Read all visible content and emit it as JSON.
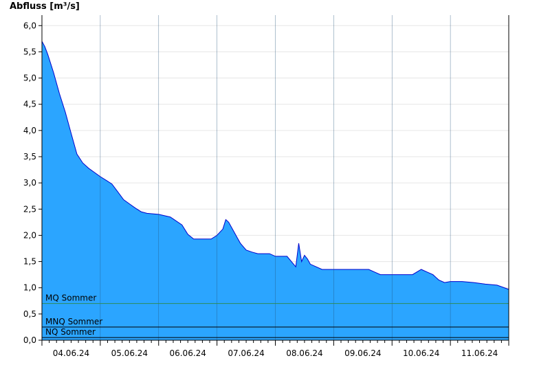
{
  "chart_data": {
    "type": "area",
    "ylabel": "Abfluss [m³/s]",
    "xlabel": "",
    "ylim": [
      0,
      6.2
    ],
    "xlim": [
      0,
      8
    ],
    "grid": true,
    "y_ticks": [
      0,
      0.5,
      1,
      1.5,
      2,
      2.5,
      3,
      3.5,
      4,
      4.5,
      5,
      5.5,
      6
    ],
    "y_tick_labels": [
      "0,0",
      "0,5",
      "1,0",
      "1,5",
      "2,0",
      "2,5",
      "3,0",
      "3,5",
      "4,0",
      "4,5",
      "5,0",
      "5,5",
      "6,0"
    ],
    "x_tick_labels": [
      "04.06.24",
      "05.06.24",
      "06.06.24",
      "07.06.24",
      "08.06.24",
      "09.06.24",
      "10.06.24",
      "11.06.24"
    ],
    "fill_color": "#2ba5ff",
    "line_color": "#0000cc",
    "reference_lines": [
      {
        "label": "MQ Sommer",
        "value": 0.7,
        "color": "#2e8b57"
      },
      {
        "label": "MNQ Sommer",
        "value": 0.25,
        "color": "#000000"
      },
      {
        "label": "NQ Sommer",
        "value": 0.05,
        "color": "#000000"
      }
    ],
    "series": [
      {
        "x": [
          0,
          0.05,
          0.1,
          0.2,
          0.3,
          0.4,
          0.5,
          0.6,
          0.7,
          0.8,
          0.9,
          1.0,
          1.1,
          1.2,
          1.3,
          1.4,
          1.5,
          1.6,
          1.7,
          1.8,
          2.0,
          2.2,
          2.4,
          2.5,
          2.6,
          2.7,
          2.8,
          2.9,
          3.0,
          3.1,
          3.15,
          3.2,
          3.3,
          3.35,
          3.4,
          3.5,
          3.6,
          3.7,
          3.8,
          3.9,
          4.0,
          4.2,
          4.35,
          4.4,
          4.45,
          4.5,
          4.55,
          4.6,
          4.7,
          4.8,
          4.9,
          5.0,
          5.2,
          5.4,
          5.6,
          5.7,
          5.8,
          6.0,
          6.2,
          6.35,
          6.5,
          6.6,
          6.7,
          6.8,
          6.9,
          7.0,
          7.2,
          7.4,
          7.6,
          7.8,
          8.0
        ],
        "values": [
          5.7,
          5.6,
          5.45,
          5.1,
          4.7,
          4.35,
          3.95,
          3.55,
          3.38,
          3.28,
          3.2,
          3.12,
          3.05,
          2.98,
          2.83,
          2.68,
          2.6,
          2.52,
          2.45,
          2.42,
          2.4,
          2.35,
          2.2,
          2.02,
          1.93,
          1.93,
          1.93,
          1.93,
          2.0,
          2.12,
          2.3,
          2.25,
          2.05,
          1.95,
          1.85,
          1.72,
          1.68,
          1.65,
          1.65,
          1.65,
          1.6,
          1.6,
          1.4,
          1.85,
          1.5,
          1.62,
          1.55,
          1.45,
          1.4,
          1.35,
          1.35,
          1.35,
          1.35,
          1.35,
          1.35,
          1.3,
          1.25,
          1.25,
          1.25,
          1.25,
          1.35,
          1.3,
          1.25,
          1.15,
          1.1,
          1.12,
          1.12,
          1.1,
          1.07,
          1.05,
          0.97
        ]
      }
    ]
  }
}
